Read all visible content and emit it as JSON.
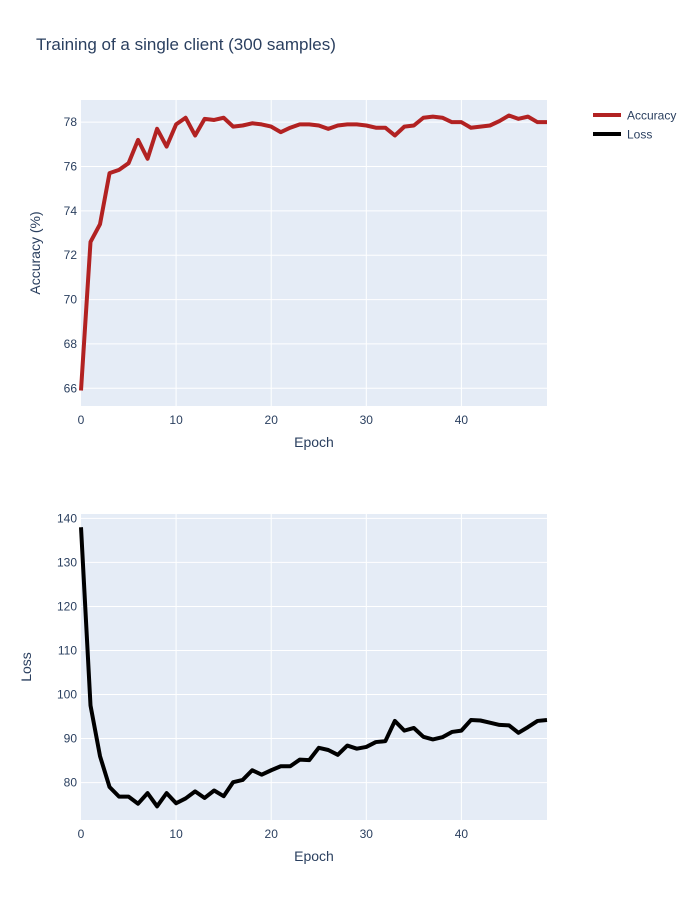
{
  "title": "Training of a single client (300 samples)",
  "colors": {
    "plot_bg": "#e5ecf6",
    "grid": "#ffffff",
    "text": "#2a3f5f",
    "accuracy": "#b22222",
    "loss": "#000000"
  },
  "chart_data": [
    {
      "type": "line",
      "xlabel": "Epoch",
      "ylabel": "Accuracy (%)",
      "xlim": [
        0,
        49
      ],
      "ylim": [
        65.2,
        79.0
      ],
      "xticks": [
        0,
        10,
        20,
        30,
        40
      ],
      "yticks": [
        66,
        68,
        70,
        72,
        74,
        76,
        78
      ],
      "grid": true,
      "legend_position": "top-right",
      "series": [
        {
          "name": "Accuracy",
          "color": "#b22222",
          "x": [
            0,
            1,
            2,
            3,
            4,
            5,
            6,
            7,
            8,
            9,
            10,
            11,
            12,
            13,
            14,
            15,
            16,
            17,
            18,
            19,
            20,
            21,
            22,
            23,
            24,
            25,
            26,
            27,
            28,
            29,
            30,
            31,
            32,
            33,
            34,
            35,
            36,
            37,
            38,
            39,
            40,
            41,
            42,
            43,
            44,
            45,
            46,
            47,
            48,
            49
          ],
          "values": [
            65.9,
            72.6,
            73.4,
            75.7,
            75.85,
            76.15,
            77.2,
            76.35,
            77.7,
            76.9,
            77.9,
            78.2,
            77.4,
            78.15,
            78.1,
            78.2,
            77.8,
            77.85,
            77.95,
            77.9,
            77.8,
            77.55,
            77.75,
            77.9,
            77.9,
            77.85,
            77.7,
            77.85,
            77.9,
            77.9,
            77.85,
            77.75,
            77.75,
            77.4,
            77.8,
            77.85,
            78.2,
            78.25,
            78.2,
            78.0,
            78.0,
            77.75,
            77.8,
            77.85,
            78.05,
            78.3,
            78.15,
            78.25,
            78.0,
            78.0
          ]
        }
      ]
    },
    {
      "type": "line",
      "xlabel": "Epoch",
      "ylabel": "Loss",
      "xlim": [
        0,
        49
      ],
      "ylim": [
        71.5,
        141
      ],
      "xticks": [
        0,
        10,
        20,
        30,
        40
      ],
      "yticks": [
        80,
        90,
        100,
        110,
        120,
        130,
        140
      ],
      "grid": true,
      "series": [
        {
          "name": "Loss",
          "color": "#000000",
          "x": [
            0,
            1,
            2,
            3,
            4,
            5,
            6,
            7,
            8,
            9,
            10,
            11,
            12,
            13,
            14,
            15,
            16,
            17,
            18,
            19,
            20,
            21,
            22,
            23,
            24,
            25,
            26,
            27,
            28,
            29,
            30,
            31,
            32,
            33,
            34,
            35,
            36,
            37,
            38,
            39,
            40,
            41,
            42,
            43,
            44,
            45,
            46,
            47,
            48,
            49
          ],
          "values": [
            138,
            97.5,
            86,
            79,
            76.8,
            76.8,
            75.2,
            77.6,
            74.6,
            77.6,
            75.3,
            76.4,
            78,
            76.5,
            78.2,
            76.9,
            80.1,
            80.6,
            82.8,
            81.8,
            82.8,
            83.7,
            83.7,
            85.2,
            85.1,
            87.9,
            87.4,
            86.3,
            88.4,
            87.7,
            88.1,
            89.2,
            89.4,
            94,
            91.8,
            92.4,
            90.4,
            89.8,
            90.3,
            91.5,
            91.8,
            94.2,
            94.1,
            93.6,
            93.1,
            93,
            91.3,
            92.6,
            94,
            94.2
          ]
        }
      ]
    }
  ]
}
